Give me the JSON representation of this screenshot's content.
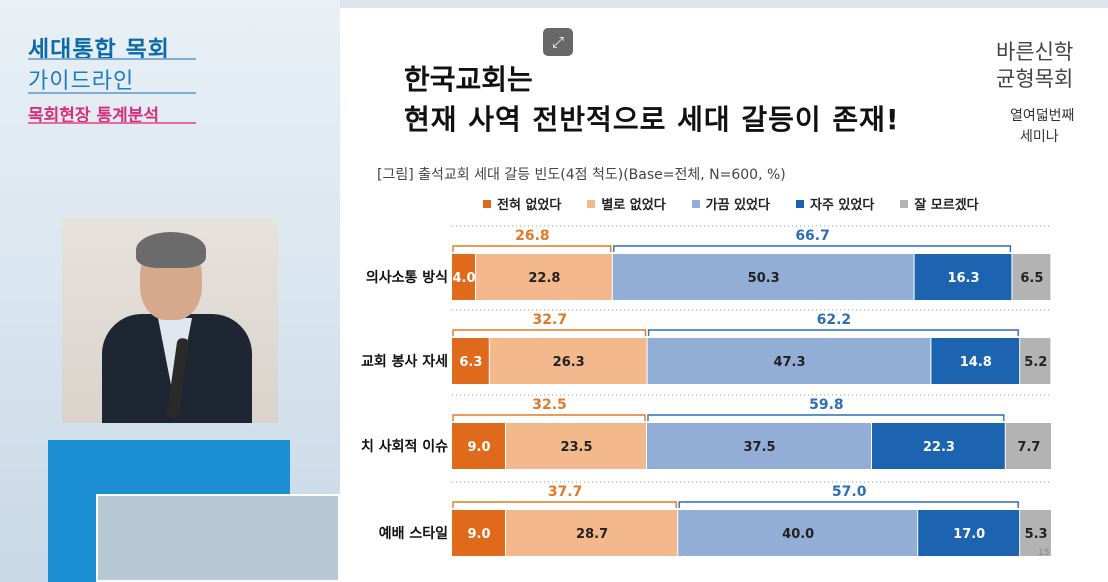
{
  "branding": {
    "line1": "세대통합 목회",
    "line2": "가이드라인",
    "line3": "목회현장 통계분석"
  },
  "right_branding": {
    "line1": "바른신학",
    "line2": "균형목회",
    "line3": "열여덟번째",
    "line4": "세미나"
  },
  "slide": {
    "title_line1": "한국교회는",
    "title_line2": "현재 사역 전반적으로 세대 갈등이 존재!",
    "caption": "[그림] 출석교회 세대 갈등 빈도(4점 척도)(Base=전체, N=600, %)",
    "page_number": "15"
  },
  "colors": {
    "never": "#e06a1b",
    "rarely": "#f3b98c",
    "sometimes": "#93aed6",
    "often": "#1c63b0",
    "dont_know": "#b3b3b3",
    "bracket_low": "#e07a2a",
    "bracket_high": "#2c6fb7"
  },
  "chart_data": {
    "type": "bar",
    "orientation": "horizontal",
    "stacked": true,
    "categories": [
      "의사소통 방식",
      "교회 봉사 자세",
      "치 사회적 이슈",
      "예배 스타일"
    ],
    "series": [
      {
        "name": "전혀 없었다",
        "values": [
          4.0,
          6.3,
          9.0,
          9.0
        ]
      },
      {
        "name": "별로 없었다",
        "values": [
          22.8,
          26.3,
          23.5,
          28.7
        ]
      },
      {
        "name": "가끔 있었다",
        "values": [
          50.3,
          47.3,
          37.5,
          40.0
        ]
      },
      {
        "name": "자주 있었다",
        "values": [
          16.3,
          14.8,
          22.3,
          17.0
        ]
      },
      {
        "name": "잘 모르겠다",
        "values": [
          6.5,
          5.2,
          7.7,
          5.3
        ]
      }
    ],
    "bracket_low_totals": [
      26.8,
      32.7,
      32.5,
      37.7
    ],
    "bracket_high_totals": [
      66.7,
      62.2,
      59.8,
      57.0
    ],
    "xlim": [
      0,
      100
    ],
    "legend_position": "top"
  }
}
